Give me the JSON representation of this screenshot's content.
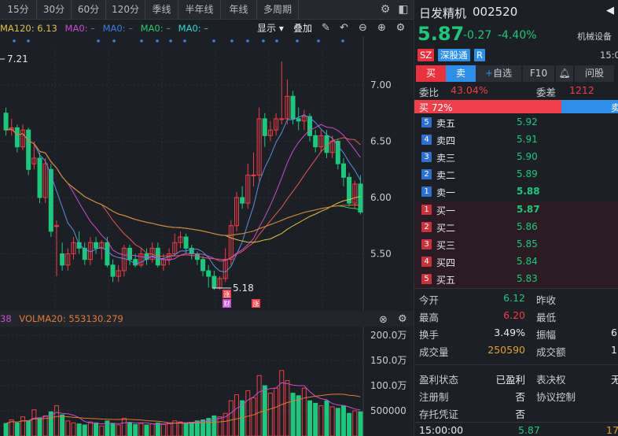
{
  "toolbar": {
    "periods": [
      "15分",
      "30分",
      "60分",
      "120分",
      "季线",
      "半年线",
      "年线",
      "多周期"
    ]
  },
  "ma_line": {
    "ma120": "MA120: 6.13",
    "ma_a": "MA0: –",
    "ma_b": "MA0: –",
    "ma_c": "MA0: –",
    "ma_d": "MA0: –"
  },
  "controls": {
    "display": "显示",
    "overlay": "叠加"
  },
  "colors": {
    "up": "#ef3f4c",
    "down": "#1fc77e",
    "bg": "#1c1f24",
    "accent": "#2e8fe8"
  },
  "price_chart": {
    "y_ticks": [
      "7.00",
      "6.50",
      "6.00",
      "5.50"
    ],
    "high_label": "7.21",
    "low_label": "5.18",
    "event_badges": [
      "涨",
      "财",
      "涨"
    ],
    "candles": [
      [
        6.75,
        6.6,
        6.8,
        6.55
      ],
      [
        6.6,
        6.62,
        6.7,
        6.55
      ],
      [
        6.62,
        6.45,
        6.65,
        6.4
      ],
      [
        6.45,
        6.6,
        6.65,
        6.42
      ],
      [
        6.6,
        6.25,
        6.62,
        6.2
      ],
      [
        6.3,
        6.35,
        6.5,
        6.25
      ],
      [
        6.35,
        6.0,
        6.4,
        5.95
      ],
      [
        6.0,
        6.3,
        6.35,
        5.95
      ],
      [
        6.25,
        5.7,
        6.3,
        5.65
      ],
      [
        5.75,
        5.75,
        5.8,
        5.3
      ],
      [
        5.5,
        5.4,
        5.6,
        5.35
      ],
      [
        5.4,
        5.5,
        5.55,
        5.35
      ],
      [
        5.5,
        5.6,
        5.65,
        5.45
      ],
      [
        5.6,
        5.55,
        5.7,
        5.5
      ],
      [
        5.55,
        5.45,
        5.6,
        5.4
      ],
      [
        5.45,
        5.6,
        5.65,
        5.4
      ],
      [
        5.6,
        5.55,
        5.65,
        5.5
      ],
      [
        5.55,
        5.6,
        5.62,
        5.45
      ],
      [
        5.6,
        5.4,
        5.65,
        5.38
      ],
      [
        5.4,
        5.3,
        5.45,
        5.25
      ],
      [
        5.3,
        5.35,
        5.4,
        5.25
      ],
      [
        5.35,
        5.55,
        5.58,
        5.3
      ],
      [
        5.55,
        5.45,
        5.58,
        5.4
      ],
      [
        5.45,
        5.4,
        5.5,
        5.38
      ],
      [
        5.4,
        5.5,
        5.55,
        5.38
      ],
      [
        5.5,
        5.45,
        5.55,
        5.4
      ],
      [
        5.45,
        5.55,
        5.6,
        5.42
      ],
      [
        5.55,
        5.4,
        5.6,
        5.38
      ],
      [
        5.4,
        5.45,
        5.5,
        5.35
      ],
      [
        5.45,
        5.5,
        5.55,
        5.4
      ],
      [
        5.5,
        5.6,
        5.68,
        5.48
      ],
      [
        5.6,
        5.65,
        5.7,
        5.55
      ],
      [
        5.65,
        5.55,
        5.68,
        5.5
      ],
      [
        5.55,
        5.5,
        5.58,
        5.45
      ],
      [
        5.5,
        5.45,
        5.52,
        5.4
      ],
      [
        5.45,
        5.35,
        5.48,
        5.3
      ],
      [
        5.35,
        5.3,
        5.4,
        5.2
      ],
      [
        5.3,
        5.2,
        5.35,
        5.18
      ],
      [
        5.2,
        5.28,
        5.3,
        5.18
      ],
      [
        5.28,
        5.45,
        5.55,
        5.25
      ],
      [
        5.45,
        5.75,
        5.8,
        5.4
      ],
      [
        5.75,
        6.0,
        6.05,
        5.7
      ],
      [
        6.0,
        5.95,
        6.1,
        5.9
      ],
      [
        5.95,
        6.2,
        6.3,
        5.9
      ],
      [
        6.2,
        6.2,
        6.4,
        6.1
      ],
      [
        6.2,
        6.7,
        6.8,
        6.15
      ],
      [
        6.7,
        6.55,
        6.75,
        6.45
      ],
      [
        6.55,
        6.6,
        6.68,
        6.5
      ],
      [
        6.6,
        6.7,
        6.75,
        6.55
      ],
      [
        6.7,
        6.7,
        7.21,
        6.65
      ],
      [
        6.7,
        6.9,
        7.05,
        6.65
      ],
      [
        6.9,
        6.7,
        6.95,
        6.65
      ],
      [
        6.7,
        6.68,
        6.8,
        6.6
      ],
      [
        6.68,
        6.72,
        6.78,
        6.6
      ],
      [
        6.72,
        6.55,
        6.75,
        6.5
      ],
      [
        6.55,
        6.45,
        6.6,
        6.4
      ],
      [
        6.45,
        6.55,
        6.6,
        6.4
      ],
      [
        6.55,
        6.4,
        6.6,
        6.35
      ],
      [
        6.4,
        6.5,
        6.55,
        6.35
      ],
      [
        6.5,
        6.3,
        6.52,
        6.25
      ],
      [
        6.3,
        6.18,
        6.35,
        6.1
      ],
      [
        6.18,
        5.95,
        6.22,
        5.92
      ],
      [
        5.95,
        6.12,
        6.15,
        5.9
      ],
      [
        6.12,
        5.87,
        6.2,
        5.85
      ]
    ]
  },
  "volume": {
    "vol_label": "38",
    "volma20": "VOLMA20: 553130.279",
    "y_ticks": [
      "200.0万",
      "150.0万",
      "100.0万",
      "500000"
    ],
    "values": [
      250000,
      320000,
      260000,
      380000,
      300000,
      520000,
      350000,
      400000,
      480000,
      600000,
      420000,
      300000,
      260000,
      240000,
      220000,
      280000,
      260000,
      200000,
      300000,
      240000,
      220000,
      350000,
      260000,
      230000,
      250000,
      220000,
      240000,
      260000,
      230000,
      260000,
      300000,
      280000,
      250000,
      270000,
      300000,
      320000,
      350000,
      400000,
      380000,
      450000,
      700000,
      820000,
      700000,
      900000,
      760000,
      1200000,
      1000000,
      850000,
      950000,
      1300000,
      1100000,
      850000,
      800000,
      950000,
      700000,
      650000,
      600000,
      700000,
      580000,
      550000,
      600000,
      450000,
      500000,
      480000
    ]
  },
  "stock": {
    "name": "日发精机",
    "code": "002520",
    "price": "5.87",
    "change": "-0.27",
    "change_pct": "-4.40%",
    "industry": "机械设备",
    "market": "SZ",
    "connect": "深股通",
    "flag": "R",
    "time": "15:0"
  },
  "trade_tabs": {
    "buy": "买",
    "sell": "卖",
    "watchlist": "自选",
    "f10": "F10",
    "ask": "问股"
  },
  "committee": {
    "ratio_label": "委比",
    "ratio": "43.04%",
    "diff_label": "委差",
    "diff": "1212"
  },
  "buy_pct": "买 72%",
  "sell_pct_label": "卖",
  "buy_fraction": 0.72,
  "asks": [
    {
      "n": "5",
      "label": "卖五",
      "price": "5.92"
    },
    {
      "n": "4",
      "label": "卖四",
      "price": "5.91"
    },
    {
      "n": "3",
      "label": "卖三",
      "price": "5.90"
    },
    {
      "n": "2",
      "label": "卖二",
      "price": "5.89"
    },
    {
      "n": "1",
      "label": "卖一",
      "price": "5.88"
    }
  ],
  "bids": [
    {
      "n": "1",
      "label": "买一",
      "price": "5.87"
    },
    {
      "n": "2",
      "label": "买二",
      "price": "5.86"
    },
    {
      "n": "3",
      "label": "买三",
      "price": "5.85"
    },
    {
      "n": "4",
      "label": "买四",
      "price": "5.84"
    },
    {
      "n": "5",
      "label": "买五",
      "price": "5.83"
    }
  ],
  "stats": [
    {
      "k1": "今开",
      "v1": "6.12",
      "k2": "昨收",
      "v2": ""
    },
    {
      "k1": "最高",
      "v1": "6.20",
      "k2": "最低",
      "v2": ""
    },
    {
      "k1": "换手",
      "v1": "3.49%",
      "k2": "振幅",
      "v2": "6"
    },
    {
      "k1": "成交量",
      "v1": "250590",
      "k2": "成交额",
      "v2": "1"
    }
  ],
  "profile": [
    {
      "k1": "盈利状态",
      "v1": "已盈利",
      "k2": "表决权",
      "v2": "无"
    },
    {
      "k1": "注册制",
      "v1": "否",
      "k2": "协议控制",
      "v2": ""
    },
    {
      "k1": "存托凭证",
      "v1": "否",
      "k2": "",
      "v2": ""
    }
  ],
  "last_tick": {
    "time": "15:00:00",
    "price": "5.87",
    "vol": "17"
  }
}
